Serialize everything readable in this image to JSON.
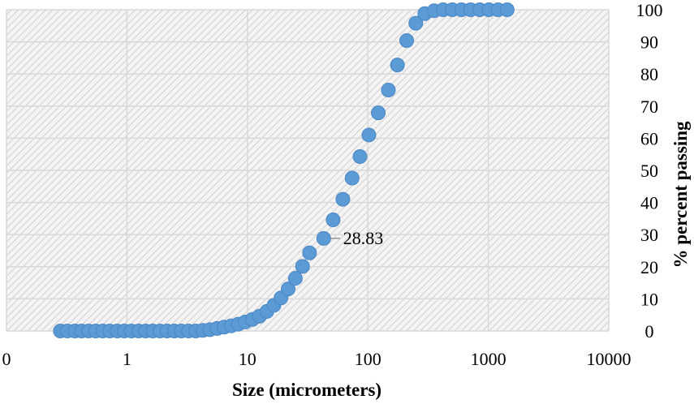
{
  "chart_data": {
    "type": "scatter",
    "x_scale": "log",
    "xlim": [
      0.1,
      10000
    ],
    "ylim": [
      0,
      100
    ],
    "xticks": [
      {
        "value": 0.1,
        "label": "0"
      },
      {
        "value": 1,
        "label": "1"
      },
      {
        "value": 10,
        "label": "10"
      },
      {
        "value": 100,
        "label": "100"
      },
      {
        "value": 1000,
        "label": "1000"
      },
      {
        "value": 10000,
        "label": "10000"
      }
    ],
    "yticks": [
      {
        "value": 0,
        "label": "0"
      },
      {
        "value": 10,
        "label": "10"
      },
      {
        "value": 20,
        "label": "20"
      },
      {
        "value": 30,
        "label": "30"
      },
      {
        "value": 40,
        "label": "40"
      },
      {
        "value": 50,
        "label": "50"
      },
      {
        "value": 60,
        "label": "60"
      },
      {
        "value": 70,
        "label": "70"
      },
      {
        "value": 80,
        "label": "80"
      },
      {
        "value": 90,
        "label": "90"
      },
      {
        "value": 100,
        "label": "100"
      }
    ],
    "xlabel": "Size (micrometers)",
    "ylabel": "% percent passing",
    "y_axis_side": "right",
    "grid": true,
    "plot_fill": "hatched light grey",
    "colors": {
      "marker": "#5B9BD5",
      "marker_stroke": "#4A86C5",
      "grid": "#d9d9d9",
      "hatch": "#c8c8c8"
    },
    "series": [
      {
        "points": [
          [
            0.28,
            0.0
          ],
          [
            0.32,
            0.0
          ],
          [
            0.37,
            0.0
          ],
          [
            0.42,
            0.0
          ],
          [
            0.48,
            0.0
          ],
          [
            0.55,
            0.0
          ],
          [
            0.63,
            0.0
          ],
          [
            0.72,
            0.0
          ],
          [
            0.83,
            0.0
          ],
          [
            0.95,
            0.0
          ],
          [
            1.09,
            0.0
          ],
          [
            1.25,
            0.0
          ],
          [
            1.43,
            0.0
          ],
          [
            1.64,
            0.0
          ],
          [
            1.88,
            0.0
          ],
          [
            2.15,
            0.0
          ],
          [
            2.47,
            0.0
          ],
          [
            2.83,
            0.0
          ],
          [
            3.24,
            0.0
          ],
          [
            3.72,
            0.0
          ],
          [
            4.26,
            0.2
          ],
          [
            4.88,
            0.4
          ],
          [
            5.6,
            0.8
          ],
          [
            6.4,
            1.2
          ],
          [
            7.35,
            1.6
          ],
          [
            8.4,
            2.1
          ],
          [
            9.6,
            2.8
          ],
          [
            11.0,
            3.6
          ],
          [
            12.6,
            4.6
          ],
          [
            14.5,
            6.1
          ],
          [
            16.6,
            8.0
          ],
          [
            19.0,
            10.3
          ],
          [
            21.8,
            13.1
          ],
          [
            25.0,
            16.4
          ],
          [
            28.7,
            20.1
          ],
          [
            32.8,
            24.3
          ],
          [
            43.0,
            28.83
          ],
          [
            51.5,
            34.6
          ],
          [
            62.0,
            41.0
          ],
          [
            74.0,
            47.6
          ],
          [
            86.0,
            54.3
          ],
          [
            102.0,
            61.0
          ],
          [
            122.0,
            67.9
          ],
          [
            148.0,
            75.0
          ],
          [
            176.0,
            82.8
          ],
          [
            210.0,
            90.4
          ],
          [
            250.0,
            95.8
          ],
          [
            297.0,
            98.8
          ],
          [
            355.0,
            99.7
          ],
          [
            422.0,
            100.0
          ],
          [
            503.0,
            100.0
          ],
          [
            599.0,
            100.0
          ],
          [
            713.0,
            100.0
          ],
          [
            849.0,
            100.0
          ],
          [
            1011.0,
            100.0
          ],
          [
            1204.0,
            100.0
          ],
          [
            1434.0,
            100.0
          ]
        ]
      }
    ],
    "annotations": [
      {
        "x": 43.0,
        "y": 28.83,
        "text": "28.83"
      }
    ]
  }
}
